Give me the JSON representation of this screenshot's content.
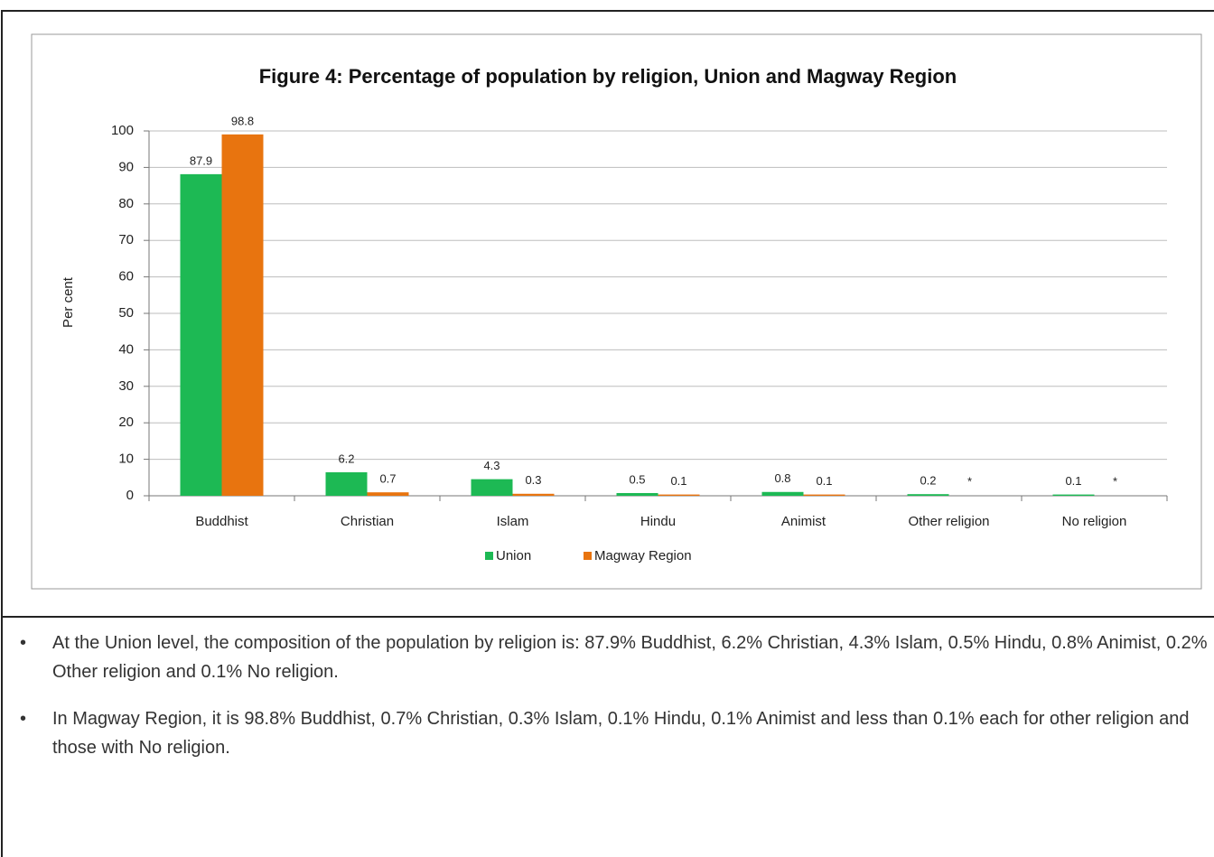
{
  "chart_data": {
    "type": "bar",
    "title": "Figure 4: Percentage of population by religion, Union and Magway Region",
    "y_label": "Per cent",
    "categories": [
      "Buddhist",
      "Christian",
      "Islam",
      "Hindu",
      "Animist",
      "Other religion",
      "No religion"
    ],
    "series": [
      {
        "name": "Union",
        "color": "#1db954",
        "values": [
          87.9,
          6.2,
          4.3,
          0.5,
          0.8,
          0.2,
          0.1
        ]
      },
      {
        "name": "Magway Region",
        "color": "#e8740f",
        "values": [
          98.8,
          0.7,
          0.3,
          0.1,
          0.1,
          null,
          null
        ],
        "value_labels": [
          "98.8",
          "0.7",
          "0.3",
          "0.1",
          "0.1",
          "*",
          "*"
        ]
      }
    ],
    "ylim": [
      0,
      100
    ],
    "yticks": [
      0,
      10,
      20,
      30,
      40,
      50,
      60,
      70,
      80,
      90,
      100
    ],
    "grid": true,
    "legend": "bottom"
  },
  "bullets": [
    "At the Union level, the composition of the population by religion is: 87.9% Buddhist, 6.2% Christian, 4.3% Islam, 0.5% Hindu, 0.8% Animist, 0.2% Other religion and 0.1% No religion.",
    "In Magway Region, it is 98.8% Buddhist, 0.7% Christian, 0.3% Islam, 0.1% Hindu, 0.1% Animist  and less than 0.1% each for other religion and those with No religion."
  ]
}
